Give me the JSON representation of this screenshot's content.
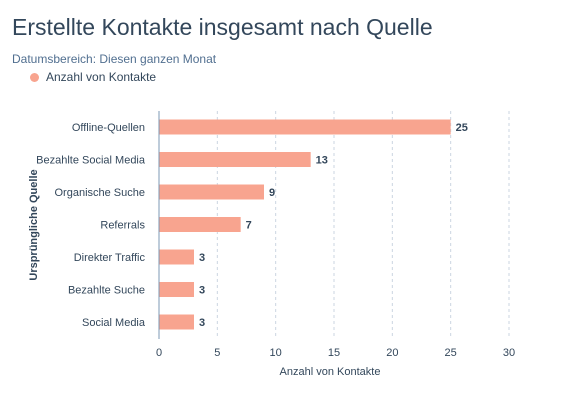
{
  "title": "Erstellte Kontakte insgesamt nach Quelle",
  "subtitle": "Datumsbereich: Diesen ganzen Monat",
  "colors": {
    "bar": "#f8a48f",
    "text": "#33475b",
    "axis": "#7c98b6",
    "grid": "#cbd6e2"
  },
  "chart_data": {
    "type": "bar",
    "orientation": "horizontal",
    "categories": [
      "Offline-Quellen",
      "Bezahlte Social Media",
      "Organische Suche",
      "Referrals",
      "Direkter Traffic",
      "Bezahlte Suche",
      "Social Media"
    ],
    "series": [
      {
        "name": "Anzahl von Kontakte",
        "values": [
          25,
          13,
          9,
          7,
          3,
          3,
          3
        ]
      }
    ],
    "xlabel": "Anzahl von Kontakte",
    "ylabel": "Ursprüngliche Quelle",
    "xlim": [
      0,
      30
    ],
    "xticks": [
      0,
      5,
      10,
      15,
      20,
      25,
      30
    ],
    "data_labels": true,
    "grid": "vertical dashed",
    "legend_position": "top-left"
  }
}
